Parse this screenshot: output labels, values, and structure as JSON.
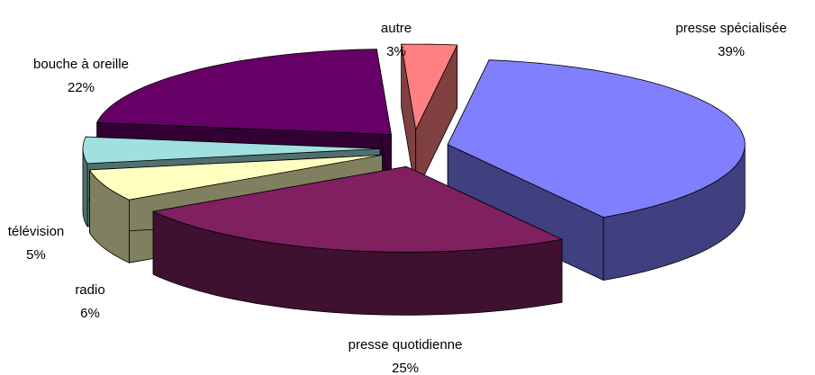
{
  "chart_data": {
    "type": "pie3d",
    "categories": [
      "presse spécialisée",
      "presse quotidienne",
      "radio",
      "télévision",
      "bouche à oreille",
      "autre"
    ],
    "values": [
      39,
      25,
      6,
      5,
      22,
      3
    ],
    "value_labels": [
      "39%",
      "25%",
      "6%",
      "5%",
      "22%",
      "3%"
    ],
    "colors": [
      "#8080ff",
      "#802060",
      "#ffffc0",
      "#a0e0e0",
      "#660066",
      "#ff8080"
    ]
  }
}
